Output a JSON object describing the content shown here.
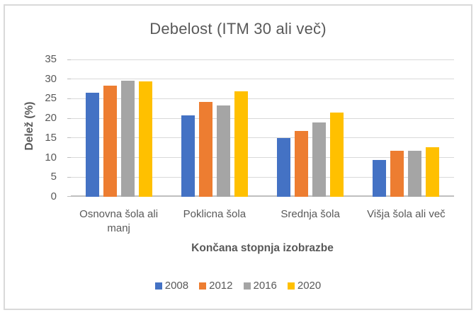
{
  "frame": {
    "border_color": "#d9d9d9",
    "background": "#ffffff"
  },
  "text_color": "#595959",
  "gridline_color": "#d9d9d9",
  "axis_line_color": "#bfbfbf",
  "chart_data": {
    "type": "bar",
    "title": "Debelost (ITM 30 ali več)",
    "xlabel": "Končana stopnja izobrazbe",
    "ylabel": "Delež (%)",
    "ylim": [
      0,
      35
    ],
    "ytick_step": 5,
    "yticks": [
      35,
      30,
      25,
      20,
      15,
      10,
      5,
      0
    ],
    "grid": true,
    "legend_position": "bottom",
    "categories": [
      "Osnovna šola ali manj",
      "Poklicna šola",
      "Srednja šola",
      "Višja šola ali več"
    ],
    "series": [
      {
        "name": "2008",
        "color": "#4472C4",
        "values": [
          26.6,
          20.8,
          15.0,
          9.4
        ]
      },
      {
        "name": "2012",
        "color": "#ED7D31",
        "values": [
          28.4,
          24.1,
          16.8,
          11.7
        ]
      },
      {
        "name": "2016",
        "color": "#A5A5A5",
        "values": [
          29.6,
          23.2,
          19.0,
          11.8
        ]
      },
      {
        "name": "2020",
        "color": "#FFC000",
        "values": [
          29.5,
          26.8,
          21.4,
          12.6
        ]
      }
    ]
  }
}
